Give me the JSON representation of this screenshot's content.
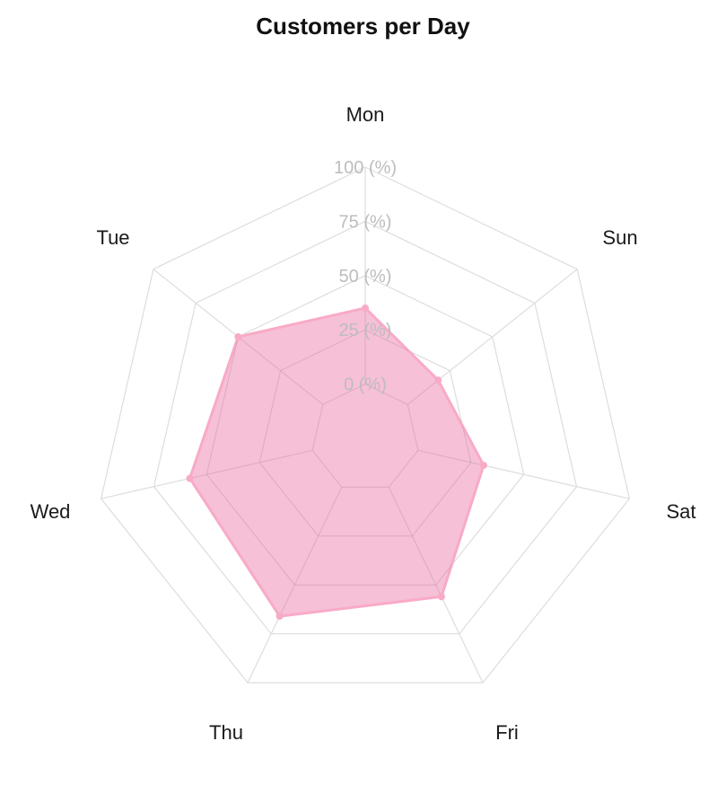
{
  "chart_data": {
    "type": "radar",
    "title": "Customers per Day",
    "axes": [
      "Mon",
      "Tue",
      "Wed",
      "Thu",
      "Fri",
      "Sat",
      "Sun"
    ],
    "series": [
      {
        "name": "Customers",
        "values": [
          35,
          50,
          58,
          66,
          56,
          31,
          18
        ],
        "fill_color": "#f6bdd5",
        "line_color": "#f8aac6"
      }
    ],
    "unit": "%",
    "range": [
      0,
      100
    ],
    "ticks": [
      "0 (%)",
      "25 (%)",
      "50 (%)",
      "75 (%)",
      "100 (%)"
    ],
    "grid_color": "#dddddd",
    "tick_label_color": "#bdbdbd"
  }
}
